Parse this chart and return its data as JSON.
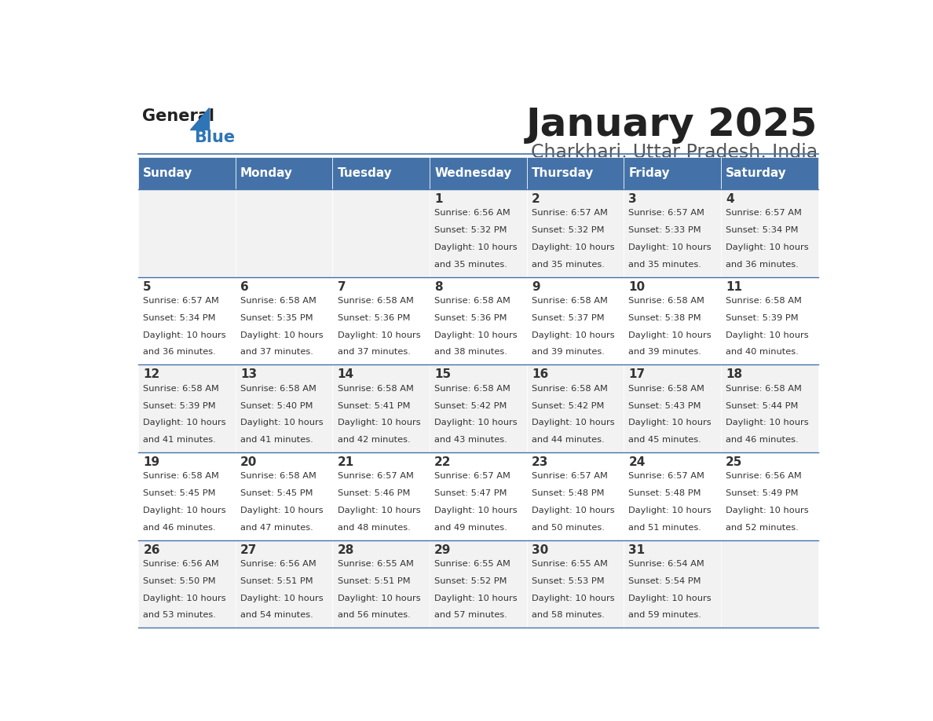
{
  "title": "January 2025",
  "subtitle": "Charkhari, Uttar Pradesh, India",
  "header_bg_color": "#4472a8",
  "header_text_color": "#ffffff",
  "days_of_week": [
    "Sunday",
    "Monday",
    "Tuesday",
    "Wednesday",
    "Thursday",
    "Friday",
    "Saturday"
  ],
  "row_bg_even": "#f2f2f2",
  "row_bg_odd": "#ffffff",
  "cell_text_color": "#333333",
  "day_num_color": "#333333",
  "border_color": "#4472a8",
  "logo_general_color": "#222222",
  "logo_blue_color": "#2e75b6",
  "calendar": [
    [
      {
        "day": null
      },
      {
        "day": null
      },
      {
        "day": null
      },
      {
        "day": 1,
        "sunrise": "6:56 AM",
        "sunset": "5:32 PM",
        "daylight": "10 hours and 35 minutes."
      },
      {
        "day": 2,
        "sunrise": "6:57 AM",
        "sunset": "5:32 PM",
        "daylight": "10 hours and 35 minutes."
      },
      {
        "day": 3,
        "sunrise": "6:57 AM",
        "sunset": "5:33 PM",
        "daylight": "10 hours and 35 minutes."
      },
      {
        "day": 4,
        "sunrise": "6:57 AM",
        "sunset": "5:34 PM",
        "daylight": "10 hours and 36 minutes."
      }
    ],
    [
      {
        "day": 5,
        "sunrise": "6:57 AM",
        "sunset": "5:34 PM",
        "daylight": "10 hours and 36 minutes."
      },
      {
        "day": 6,
        "sunrise": "6:58 AM",
        "sunset": "5:35 PM",
        "daylight": "10 hours and 37 minutes."
      },
      {
        "day": 7,
        "sunrise": "6:58 AM",
        "sunset": "5:36 PM",
        "daylight": "10 hours and 37 minutes."
      },
      {
        "day": 8,
        "sunrise": "6:58 AM",
        "sunset": "5:36 PM",
        "daylight": "10 hours and 38 minutes."
      },
      {
        "day": 9,
        "sunrise": "6:58 AM",
        "sunset": "5:37 PM",
        "daylight": "10 hours and 39 minutes."
      },
      {
        "day": 10,
        "sunrise": "6:58 AM",
        "sunset": "5:38 PM",
        "daylight": "10 hours and 39 minutes."
      },
      {
        "day": 11,
        "sunrise": "6:58 AM",
        "sunset": "5:39 PM",
        "daylight": "10 hours and 40 minutes."
      }
    ],
    [
      {
        "day": 12,
        "sunrise": "6:58 AM",
        "sunset": "5:39 PM",
        "daylight": "10 hours and 41 minutes."
      },
      {
        "day": 13,
        "sunrise": "6:58 AM",
        "sunset": "5:40 PM",
        "daylight": "10 hours and 41 minutes."
      },
      {
        "day": 14,
        "sunrise": "6:58 AM",
        "sunset": "5:41 PM",
        "daylight": "10 hours and 42 minutes."
      },
      {
        "day": 15,
        "sunrise": "6:58 AM",
        "sunset": "5:42 PM",
        "daylight": "10 hours and 43 minutes."
      },
      {
        "day": 16,
        "sunrise": "6:58 AM",
        "sunset": "5:42 PM",
        "daylight": "10 hours and 44 minutes."
      },
      {
        "day": 17,
        "sunrise": "6:58 AM",
        "sunset": "5:43 PM",
        "daylight": "10 hours and 45 minutes."
      },
      {
        "day": 18,
        "sunrise": "6:58 AM",
        "sunset": "5:44 PM",
        "daylight": "10 hours and 46 minutes."
      }
    ],
    [
      {
        "day": 19,
        "sunrise": "6:58 AM",
        "sunset": "5:45 PM",
        "daylight": "10 hours and 46 minutes."
      },
      {
        "day": 20,
        "sunrise": "6:58 AM",
        "sunset": "5:45 PM",
        "daylight": "10 hours and 47 minutes."
      },
      {
        "day": 21,
        "sunrise": "6:57 AM",
        "sunset": "5:46 PM",
        "daylight": "10 hours and 48 minutes."
      },
      {
        "day": 22,
        "sunrise": "6:57 AM",
        "sunset": "5:47 PM",
        "daylight": "10 hours and 49 minutes."
      },
      {
        "day": 23,
        "sunrise": "6:57 AM",
        "sunset": "5:48 PM",
        "daylight": "10 hours and 50 minutes."
      },
      {
        "day": 24,
        "sunrise": "6:57 AM",
        "sunset": "5:48 PM",
        "daylight": "10 hours and 51 minutes."
      },
      {
        "day": 25,
        "sunrise": "6:56 AM",
        "sunset": "5:49 PM",
        "daylight": "10 hours and 52 minutes."
      }
    ],
    [
      {
        "day": 26,
        "sunrise": "6:56 AM",
        "sunset": "5:50 PM",
        "daylight": "10 hours and 53 minutes."
      },
      {
        "day": 27,
        "sunrise": "6:56 AM",
        "sunset": "5:51 PM",
        "daylight": "10 hours and 54 minutes."
      },
      {
        "day": 28,
        "sunrise": "6:55 AM",
        "sunset": "5:51 PM",
        "daylight": "10 hours and 56 minutes."
      },
      {
        "day": 29,
        "sunrise": "6:55 AM",
        "sunset": "5:52 PM",
        "daylight": "10 hours and 57 minutes."
      },
      {
        "day": 30,
        "sunrise": "6:55 AM",
        "sunset": "5:53 PM",
        "daylight": "10 hours and 58 minutes."
      },
      {
        "day": 31,
        "sunrise": "6:54 AM",
        "sunset": "5:54 PM",
        "daylight": "10 hours and 59 minutes."
      },
      {
        "day": null
      }
    ]
  ]
}
